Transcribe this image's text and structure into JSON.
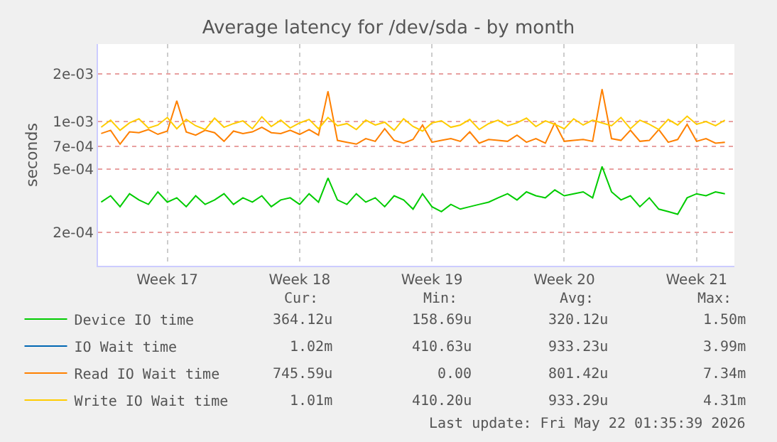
{
  "chart_data": {
    "type": "line",
    "title": "Average latency for /dev/sda - by month",
    "ylabel": "seconds",
    "x": [
      "2026-04-20T00:00",
      "2026-04-20T12:00",
      "2026-04-21T00:00",
      "2026-04-21T12:00",
      "2026-04-22T00:00",
      "2026-04-22T12:00",
      "2026-04-23T00:00",
      "2026-04-23T12:00",
      "2026-04-24T00:00",
      "2026-04-24T12:00",
      "2026-04-25T00:00",
      "2026-04-25T12:00",
      "2026-04-26T00:00",
      "2026-04-26T12:00",
      "2026-04-27T00:00",
      "2026-04-27T12:00",
      "2026-04-28T00:00",
      "2026-04-28T12:00",
      "2026-04-29T00:00",
      "2026-04-29T12:00",
      "2026-04-30T00:00",
      "2026-04-30T12:00",
      "2026-05-01T00:00",
      "2026-05-01T12:00",
      "2026-05-02T00:00",
      "2026-05-02T12:00",
      "2026-05-03T00:00",
      "2026-05-03T12:00",
      "2026-05-04T00:00",
      "2026-05-04T12:00",
      "2026-05-05T00:00",
      "2026-05-05T12:00",
      "2026-05-06T00:00",
      "2026-05-06T12:00",
      "2026-05-07T00:00",
      "2026-05-07T12:00",
      "2026-05-08T00:00",
      "2026-05-08T12:00",
      "2026-05-09T00:00",
      "2026-05-09T12:00",
      "2026-05-10T00:00",
      "2026-05-10T12:00",
      "2026-05-11T00:00",
      "2026-05-11T12:00",
      "2026-05-12T00:00",
      "2026-05-12T12:00",
      "2026-05-13T00:00",
      "2026-05-13T12:00",
      "2026-05-14T00:00",
      "2026-05-14T12:00",
      "2026-05-15T00:00",
      "2026-05-15T12:00",
      "2026-05-16T00:00",
      "2026-05-16T12:00",
      "2026-05-17T00:00",
      "2026-05-17T12:00",
      "2026-05-18T00:00",
      "2026-05-18T12:00",
      "2026-05-19T00:00",
      "2026-05-19T12:00",
      "2026-05-20T00:00",
      "2026-05-20T12:00",
      "2026-05-21T00:00",
      "2026-05-21T12:00",
      "2026-05-22T00:00",
      "2026-05-22T12:00",
      "2026-05-23T00:00"
    ],
    "series": [
      {
        "name": "Device IO time",
        "color": "#00cc00",
        "values": [
          0.00031,
          0.00034,
          0.00029,
          0.00035,
          0.00032,
          0.0003,
          0.00036,
          0.00031,
          0.00033,
          0.00029,
          0.00034,
          0.0003,
          0.00032,
          0.00035,
          0.0003,
          0.00033,
          0.00031,
          0.00034,
          0.00029,
          0.00032,
          0.00033,
          0.0003,
          0.00035,
          0.00031,
          0.00044,
          0.00032,
          0.0003,
          0.00035,
          0.00031,
          0.00033,
          0.00029,
          0.00034,
          0.00032,
          0.00028,
          0.00035,
          0.00029,
          0.00027,
          0.0003,
          0.00028,
          0.00029,
          0.0003,
          0.00031,
          0.00033,
          0.00035,
          0.00032,
          0.00036,
          0.00034,
          0.00033,
          0.00037,
          0.00034,
          0.00035,
          0.00036,
          0.00033,
          0.00052,
          0.00036,
          0.00032,
          0.00034,
          0.00029,
          0.00033,
          0.00028,
          0.00027,
          0.00026,
          0.00033,
          0.00035,
          0.00034,
          0.00036,
          0.00035
        ]
      },
      {
        "name": "IO Wait time",
        "color": "#0066b3",
        "values": [
          null,
          null,
          null,
          null,
          null,
          null,
          null,
          null,
          null,
          null,
          null,
          null,
          null,
          null,
          null,
          null,
          null,
          null,
          null,
          null,
          null,
          null,
          null,
          null,
          null,
          null,
          null,
          null,
          null,
          null,
          null,
          null,
          null,
          null,
          null,
          null,
          null,
          null,
          null,
          null,
          null,
          null,
          null,
          null,
          null,
          null,
          null,
          null,
          null,
          null,
          null,
          null,
          null,
          null,
          null,
          null,
          null,
          null,
          null,
          null,
          null,
          null,
          null,
          null,
          null,
          null,
          null
        ]
      },
      {
        "name": "Read IO Wait time",
        "color": "#ff8000",
        "values": [
          0.00084,
          0.00088,
          0.00072,
          0.00086,
          0.00085,
          0.00089,
          0.00083,
          0.00087,
          0.00135,
          0.00086,
          0.00082,
          0.00088,
          0.00085,
          0.00075,
          0.00087,
          0.00084,
          0.00086,
          0.00092,
          0.00085,
          0.00084,
          0.00088,
          0.00083,
          0.00089,
          0.00082,
          0.00155,
          0.00076,
          0.00074,
          0.00072,
          0.00078,
          0.00075,
          0.0009,
          0.00076,
          0.00073,
          0.00077,
          0.00095,
          0.00074,
          0.00076,
          0.00078,
          0.00075,
          0.00086,
          0.00073,
          0.00077,
          0.00076,
          0.00075,
          0.00082,
          0.00074,
          0.00078,
          0.00073,
          0.00098,
          0.00075,
          0.00076,
          0.00077,
          0.00075,
          0.0016,
          0.00078,
          0.00076,
          0.00088,
          0.00075,
          0.00076,
          0.00089,
          0.00074,
          0.00077,
          0.00096,
          0.00075,
          0.00078,
          0.00073,
          0.00074
        ]
      },
      {
        "name": "Write IO Wait time",
        "color": "#ffcc00",
        "values": [
          0.00092,
          0.00102,
          0.00088,
          0.00098,
          0.00104,
          0.00091,
          0.00095,
          0.00106,
          0.0009,
          0.00103,
          0.00094,
          0.00089,
          0.00105,
          0.00092,
          0.00097,
          0.00101,
          0.0009,
          0.00107,
          0.00093,
          0.00102,
          0.00091,
          0.00098,
          0.00103,
          0.0009,
          0.00106,
          0.00094,
          0.00097,
          0.00089,
          0.00102,
          0.00095,
          0.00099,
          0.00088,
          0.00104,
          0.00093,
          0.00087,
          0.00098,
          0.00101,
          0.00092,
          0.00095,
          0.00103,
          0.00089,
          0.00097,
          0.00102,
          0.00094,
          0.00098,
          0.00105,
          0.00093,
          0.00101,
          0.00096,
          0.0009,
          0.00104,
          0.00095,
          0.00102,
          0.00098,
          0.00094,
          0.00106,
          0.0009,
          0.00102,
          0.00096,
          0.00089,
          0.00103,
          0.00095,
          0.00108,
          0.00096,
          0.001,
          0.00094,
          0.00102
        ]
      }
    ],
    "xlim": [
      "2026-04-19T20:00",
      "2026-05-23T12:00"
    ],
    "xticks": [
      {
        "value": "2026-04-23T12:00",
        "label": "Week 17"
      },
      {
        "value": "2026-04-30T12:00",
        "label": "Week 18"
      },
      {
        "value": "2026-05-07T12:00",
        "label": "Week 19"
      },
      {
        "value": "2026-05-14T12:00",
        "label": "Week 20"
      },
      {
        "value": "2026-05-21T12:00",
        "label": "Week 21"
      }
    ],
    "ylim": [
      0.000123,
      0.00308
    ],
    "yticks": [
      {
        "value": 0.0002,
        "label": "2e-04"
      },
      {
        "value": 0.0005,
        "label": "5e-04"
      },
      {
        "value": 0.0007,
        "label": "7e-04"
      },
      {
        "value": 0.001,
        "label": "1e-03"
      },
      {
        "value": 0.002,
        "label": "2e-03"
      }
    ],
    "log": "y",
    "grid": true,
    "legend": "bottom",
    "annotations": [
      "Cur:",
      "Min:",
      "Avg:",
      "Max:",
      "364.12u",
      "158.69u",
      "320.12u",
      "1.50m",
      "1.02m",
      "410.63u",
      "933.23u",
      "3.99m",
      "745.59u",
      "0.00",
      "801.42u",
      "7.34m",
      "1.01m",
      "410.20u",
      "933.29u",
      "4.31m",
      "Last update: Fri May 22 01:35:39 2026"
    ]
  }
}
